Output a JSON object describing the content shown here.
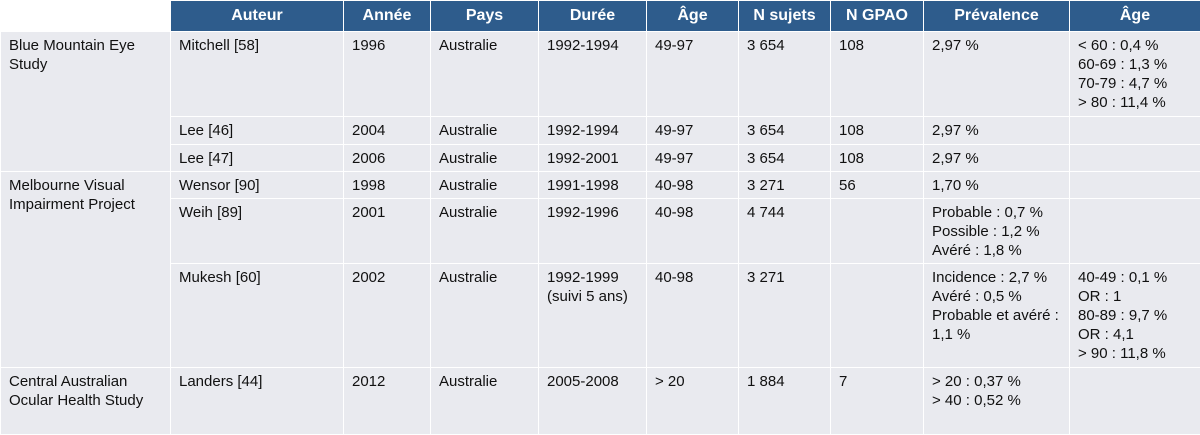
{
  "table": {
    "header": [
      "Auteur",
      "Année",
      "Pays",
      "Durée",
      "Âge",
      "N sujets",
      "N GPAO",
      "Prévalence",
      "Âge"
    ],
    "groups": [
      {
        "study": "Blue Mountain Eye Study",
        "rows": [
          {
            "author": "Mitchell [58]",
            "year": "1996",
            "country": "Australie",
            "duration": [
              "1992-1994"
            ],
            "age": "49-97",
            "n_subjects": "3 654",
            "n_gpao": "108",
            "prevalence": [
              "2,97 %"
            ],
            "age_detail": [
              "< 60 : 0,4 %",
              "60-69 : 1,3 %",
              "70-79 : 4,7 %",
              "> 80 : 11,4 %"
            ]
          },
          {
            "author": "Lee [46]",
            "year": "2004",
            "country": "Australie",
            "duration": [
              "1992-1994"
            ],
            "age": "49-97",
            "n_subjects": "3 654",
            "n_gpao": "108",
            "prevalence": [
              "2,97 %"
            ]
          },
          {
            "author": "Lee [47]",
            "year": "2006",
            "country": "Australie",
            "duration": [
              "1992-2001"
            ],
            "age": "49-97",
            "n_subjects": "3 654",
            "n_gpao": "108",
            "prevalence": [
              "2,97 %"
            ]
          }
        ]
      },
      {
        "study": "Melbourne Visual Impairment Project",
        "rows": [
          {
            "author": "Wensor [90]",
            "year": "1998",
            "country": "Australie",
            "duration": [
              "1991-1998"
            ],
            "age": "40-98",
            "n_subjects": "3 271",
            "n_gpao": "56",
            "prevalence": [
              "1,70 %"
            ]
          },
          {
            "author": "Weih [89]",
            "year": "2001",
            "country": "Australie",
            "duration": [
              "1992-1996"
            ],
            "age": "40-98",
            "n_subjects": "4 744",
            "prevalence": [
              "Probable : 0,7 %",
              "Possible : 1,2 %",
              "Avéré : 1,8 %"
            ]
          },
          {
            "author": "Mukesh [60]",
            "year": "2002",
            "country": "Australie",
            "duration": [
              "1992-1999",
              "(suivi 5 ans)"
            ],
            "age": "40-98",
            "n_subjects": "3 271",
            "prevalence": [
              "Incidence : 2,7 %",
              "Avéré : 0,5 %",
              "Probable et avéré : 1,1 %"
            ],
            "age_detail": [
              "40-49 : 0,1 %",
              "OR : 1",
              "80-89 : 9,7 %",
              "OR : 4,1",
              "> 90 : 11,8 %"
            ]
          }
        ]
      },
      {
        "study": "Central Australian Ocular Health Study",
        "rows": [
          {
            "author": "Landers [44]",
            "year": "2012",
            "country": "Australie",
            "duration": [
              "2005-2008"
            ],
            "age": "> 20",
            "n_subjects": "1 884",
            "n_gpao": "7",
            "prevalence": [
              "> 20 : 0,37 %",
              "> 40 : 0,52 %"
            ]
          }
        ]
      }
    ]
  }
}
